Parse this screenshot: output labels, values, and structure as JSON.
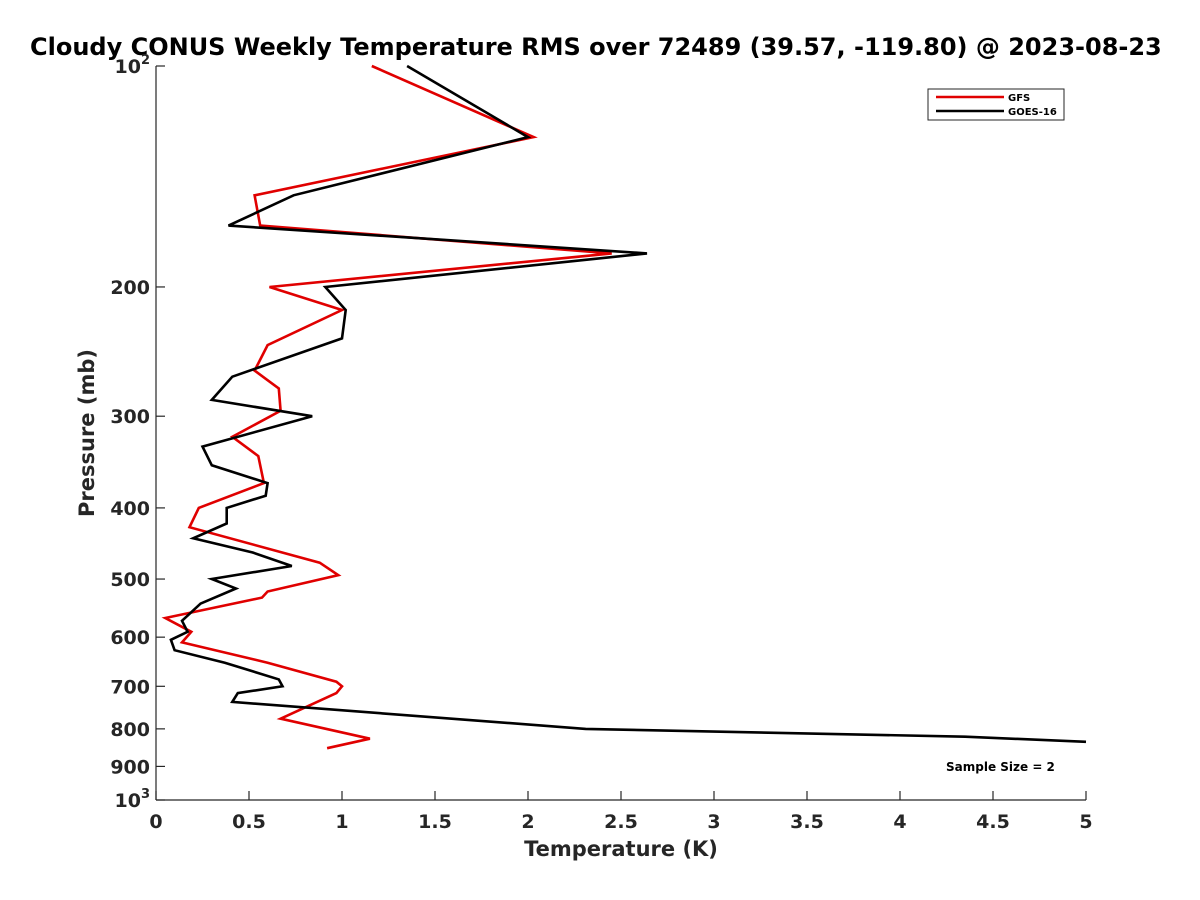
{
  "chart_data": {
    "type": "line",
    "title": "Cloudy CONUS Weekly Temperature RMS over 72489 (39.57, -119.80) @ 2023-08-23",
    "xlabel": "Temperature (K)",
    "ylabel": "Pressure (mb)",
    "xlim": [
      0,
      5
    ],
    "ylim": [
      100,
      1000
    ],
    "y_scale": "log",
    "y_reversed": true,
    "grid": false,
    "legend_position": "top-right",
    "x_ticks": [
      0,
      0.5,
      1,
      1.5,
      2,
      2.5,
      3,
      3.5,
      4,
      4.5,
      5
    ],
    "x_tick_labels": [
      "0",
      "0.5",
      "1",
      "1.5",
      "2",
      "2.5",
      "3",
      "3.5",
      "4",
      "4.5",
      "5"
    ],
    "y_ticks": [
      100,
      200,
      300,
      400,
      500,
      600,
      700,
      800,
      900,
      1000
    ],
    "y_tick_labels": [
      {
        "base": "10",
        "exp": "2"
      },
      {
        "base": "200",
        "exp": ""
      },
      {
        "base": "300",
        "exp": ""
      },
      {
        "base": "400",
        "exp": ""
      },
      {
        "base": "500",
        "exp": ""
      },
      {
        "base": "600",
        "exp": ""
      },
      {
        "base": "700",
        "exp": ""
      },
      {
        "base": "800",
        "exp": ""
      },
      {
        "base": "900",
        "exp": ""
      },
      {
        "base": "10",
        "exp": "3"
      }
    ],
    "annotation": "Sample Size = 2",
    "series": [
      {
        "name": "GFS",
        "color": "#e00000",
        "points": [
          {
            "x": 1.16,
            "p": 100
          },
          {
            "x": 2.03,
            "p": 125
          },
          {
            "x": 0.53,
            "p": 150
          },
          {
            "x": 0.56,
            "p": 165
          },
          {
            "x": 2.45,
            "p": 180
          },
          {
            "x": 0.61,
            "p": 200
          },
          {
            "x": 1.0,
            "p": 215
          },
          {
            "x": 0.6,
            "p": 240
          },
          {
            "x": 0.53,
            "p": 260
          },
          {
            "x": 0.66,
            "p": 275
          },
          {
            "x": 0.67,
            "p": 295
          },
          {
            "x": 0.41,
            "p": 320
          },
          {
            "x": 0.55,
            "p": 340
          },
          {
            "x": 0.58,
            "p": 370
          },
          {
            "x": 0.23,
            "p": 400
          },
          {
            "x": 0.18,
            "p": 425
          },
          {
            "x": 0.88,
            "p": 475
          },
          {
            "x": 0.98,
            "p": 494
          },
          {
            "x": 0.6,
            "p": 520
          },
          {
            "x": 0.57,
            "p": 530
          },
          {
            "x": 0.05,
            "p": 565
          },
          {
            "x": 0.19,
            "p": 590
          },
          {
            "x": 0.14,
            "p": 610
          },
          {
            "x": 0.6,
            "p": 650
          },
          {
            "x": 0.97,
            "p": 690
          },
          {
            "x": 1.0,
            "p": 700
          },
          {
            "x": 0.97,
            "p": 715
          },
          {
            "x": 0.67,
            "p": 775
          },
          {
            "x": 1.15,
            "p": 825
          },
          {
            "x": 0.92,
            "p": 850
          }
        ]
      },
      {
        "name": "GOES-16",
        "color": "#000000",
        "points": [
          {
            "x": 1.35,
            "p": 100
          },
          {
            "x": 2.0,
            "p": 125
          },
          {
            "x": 0.74,
            "p": 150
          },
          {
            "x": 0.39,
            "p": 165
          },
          {
            "x": 2.64,
            "p": 180
          },
          {
            "x": 0.91,
            "p": 200
          },
          {
            "x": 1.02,
            "p": 215
          },
          {
            "x": 1.0,
            "p": 235
          },
          {
            "x": 0.41,
            "p": 265
          },
          {
            "x": 0.3,
            "p": 285
          },
          {
            "x": 0.84,
            "p": 300
          },
          {
            "x": 0.25,
            "p": 330
          },
          {
            "x": 0.3,
            "p": 350
          },
          {
            "x": 0.6,
            "p": 370
          },
          {
            "x": 0.59,
            "p": 385
          },
          {
            "x": 0.38,
            "p": 400
          },
          {
            "x": 0.38,
            "p": 420
          },
          {
            "x": 0.2,
            "p": 440
          },
          {
            "x": 0.52,
            "p": 460
          },
          {
            "x": 0.73,
            "p": 480
          },
          {
            "x": 0.3,
            "p": 500
          },
          {
            "x": 0.43,
            "p": 515
          },
          {
            "x": 0.24,
            "p": 540
          },
          {
            "x": 0.14,
            "p": 570
          },
          {
            "x": 0.17,
            "p": 590
          },
          {
            "x": 0.08,
            "p": 605
          },
          {
            "x": 0.1,
            "p": 625
          },
          {
            "x": 0.37,
            "p": 650
          },
          {
            "x": 0.66,
            "p": 685
          },
          {
            "x": 0.68,
            "p": 700
          },
          {
            "x": 0.44,
            "p": 715
          },
          {
            "x": 0.41,
            "p": 735
          },
          {
            "x": 2.31,
            "p": 800
          },
          {
            "x": 4.35,
            "p": 820
          },
          {
            "x": 5.0,
            "p": 833
          }
        ]
      }
    ]
  }
}
